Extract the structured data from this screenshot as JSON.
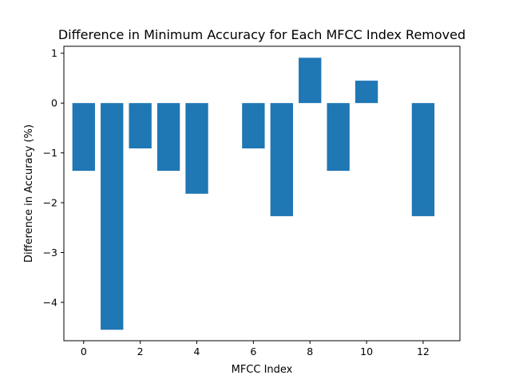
{
  "chart_data": {
    "type": "bar",
    "title": "Difference in Minimum Accuracy for Each MFCC Index Removed",
    "xlabel": "MFCC Index",
    "ylabel": "Difference in Accuracy (%)",
    "x": [
      0,
      1,
      2,
      3,
      4,
      5,
      6,
      7,
      8,
      9,
      10,
      11,
      12
    ],
    "values": [
      -1.36,
      -4.55,
      -0.91,
      -1.36,
      -1.82,
      0,
      -0.91,
      -2.27,
      0.91,
      -1.36,
      0.45,
      0,
      -2.27
    ],
    "xlim": [
      -0.7,
      13.3
    ],
    "ylim": [
      -4.77,
      1.14
    ],
    "xticks": [
      0,
      2,
      4,
      6,
      8,
      10,
      12
    ],
    "yticks": [
      1,
      0,
      -1,
      -2,
      -3,
      -4
    ],
    "ytick_labels": [
      "1",
      "0",
      "−1",
      "−2",
      "−3",
      "−4"
    ],
    "bar_color": "#1f77b4",
    "grid": false,
    "legend": "none"
  }
}
